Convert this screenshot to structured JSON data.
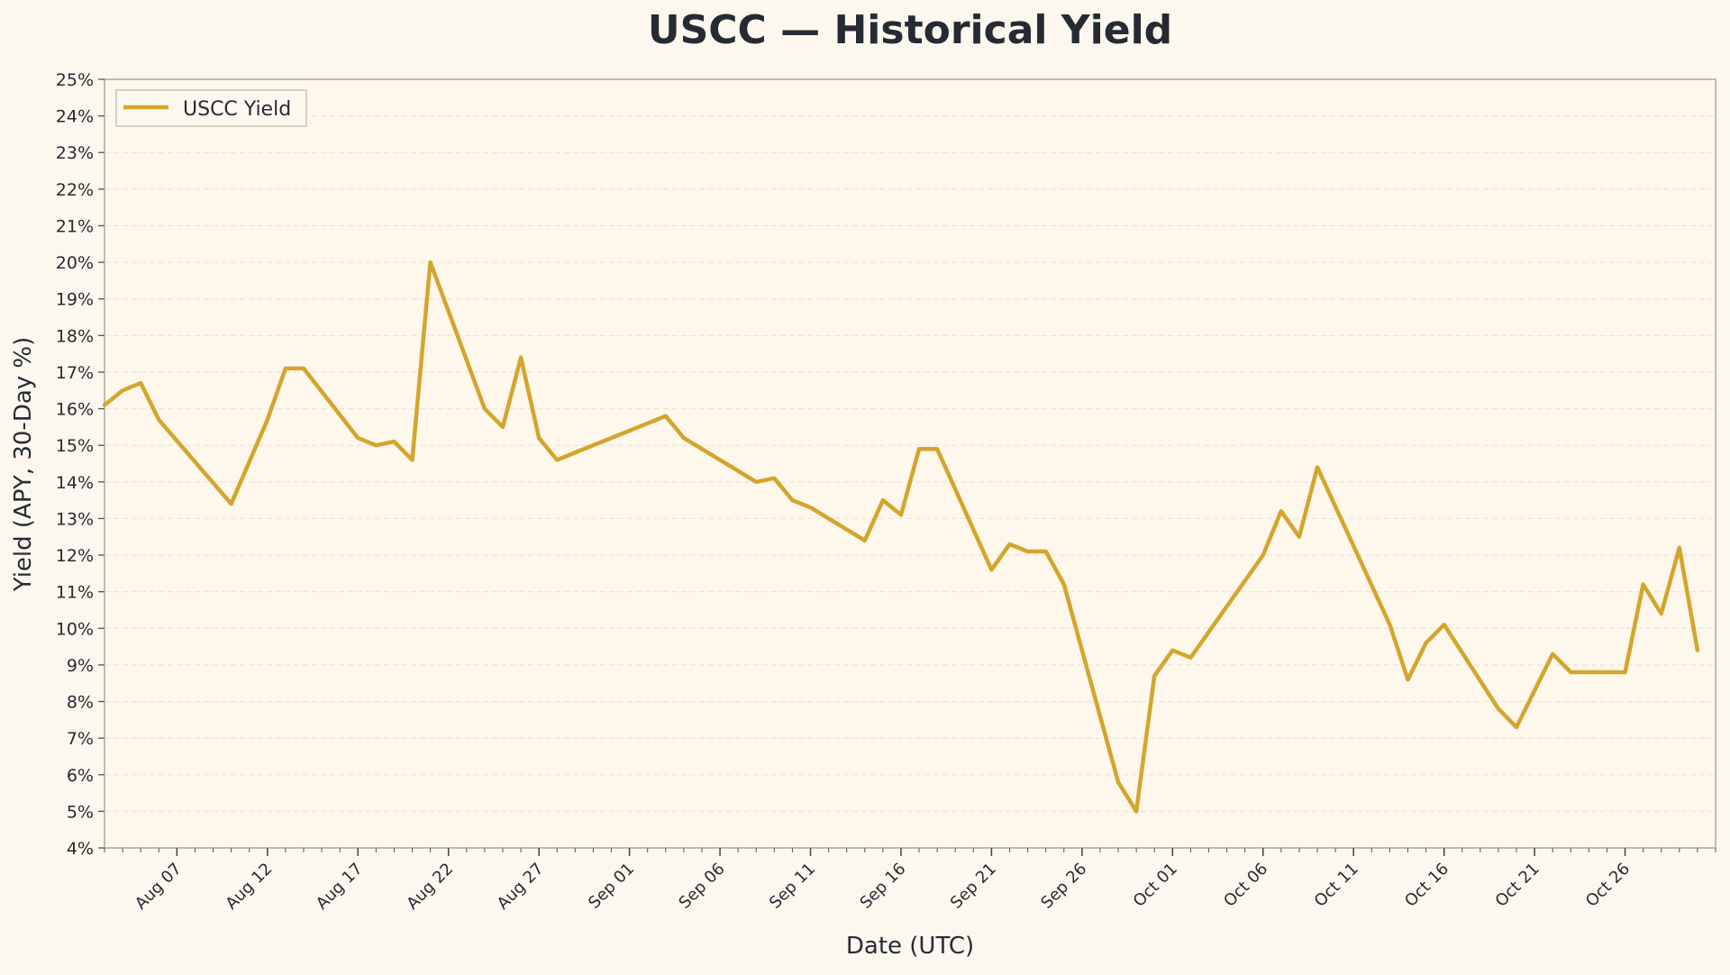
{
  "chart_data": {
    "type": "line",
    "title": "USCC — Historical Yield",
    "xlabel": "Date (UTC)",
    "ylabel": "Yield (APY, 30-Day %)",
    "ylim": [
      4,
      25
    ],
    "xlim": [
      "2025-08-03",
      "2025-10-31"
    ],
    "grid": true,
    "legend_position": "top-left",
    "y_ticks": [
      "4%",
      "5%",
      "6%",
      "7%",
      "8%",
      "9%",
      "10%",
      "11%",
      "12%",
      "13%",
      "14%",
      "15%",
      "16%",
      "17%",
      "18%",
      "19%",
      "20%",
      "21%",
      "22%",
      "23%",
      "24%",
      "25%"
    ],
    "x_ticks": [
      {
        "date": "2025-08-07",
        "label": "Aug 07"
      },
      {
        "date": "2025-08-12",
        "label": "Aug 12"
      },
      {
        "date": "2025-08-17",
        "label": "Aug 17"
      },
      {
        "date": "2025-08-22",
        "label": "Aug 22"
      },
      {
        "date": "2025-08-27",
        "label": "Aug 27"
      },
      {
        "date": "2025-09-01",
        "label": "Sep 01"
      },
      {
        "date": "2025-09-06",
        "label": "Sep 06"
      },
      {
        "date": "2025-09-11",
        "label": "Sep 11"
      },
      {
        "date": "2025-09-16",
        "label": "Sep 16"
      },
      {
        "date": "2025-09-21",
        "label": "Sep 21"
      },
      {
        "date": "2025-09-26",
        "label": "Sep 26"
      },
      {
        "date": "2025-10-01",
        "label": "Oct 01"
      },
      {
        "date": "2025-10-06",
        "label": "Oct 06"
      },
      {
        "date": "2025-10-11",
        "label": "Oct 11"
      },
      {
        "date": "2025-10-16",
        "label": "Oct 16"
      },
      {
        "date": "2025-10-21",
        "label": "Oct 21"
      },
      {
        "date": "2025-10-26",
        "label": "Oct 26"
      }
    ],
    "series": [
      {
        "name": "USCC Yield",
        "color": "#d4a52c",
        "points": [
          [
            "2025-08-03",
            16.1
          ],
          [
            "2025-08-04",
            16.5
          ],
          [
            "2025-08-05",
            16.7
          ],
          [
            "2025-08-06",
            15.7
          ],
          [
            "2025-08-10",
            13.4
          ],
          [
            "2025-08-12",
            15.7
          ],
          [
            "2025-08-13",
            17.1
          ],
          [
            "2025-08-14",
            17.1
          ],
          [
            "2025-08-17",
            15.2
          ],
          [
            "2025-08-18",
            15.0
          ],
          [
            "2025-08-19",
            15.1
          ],
          [
            "2025-08-20",
            14.6
          ],
          [
            "2025-08-21",
            20.0
          ],
          [
            "2025-08-24",
            16.0
          ],
          [
            "2025-08-25",
            15.5
          ],
          [
            "2025-08-26",
            17.4
          ],
          [
            "2025-08-27",
            15.2
          ],
          [
            "2025-08-28",
            14.6
          ],
          [
            "2025-09-01",
            15.4
          ],
          [
            "2025-09-02",
            15.6
          ],
          [
            "2025-09-03",
            15.8
          ],
          [
            "2025-09-04",
            15.2
          ],
          [
            "2025-09-07",
            14.3
          ],
          [
            "2025-09-08",
            14.0
          ],
          [
            "2025-09-09",
            14.1
          ],
          [
            "2025-09-10",
            13.5
          ],
          [
            "2025-09-11",
            13.3
          ],
          [
            "2025-09-14",
            12.4
          ],
          [
            "2025-09-15",
            13.5
          ],
          [
            "2025-09-16",
            13.1
          ],
          [
            "2025-09-17",
            14.9
          ],
          [
            "2025-09-18",
            14.9
          ],
          [
            "2025-09-21",
            11.6
          ],
          [
            "2025-09-22",
            12.3
          ],
          [
            "2025-09-23",
            12.1
          ],
          [
            "2025-09-24",
            12.1
          ],
          [
            "2025-09-25",
            11.2
          ],
          [
            "2025-09-28",
            5.8
          ],
          [
            "2025-09-29",
            5.0
          ],
          [
            "2025-09-30",
            8.7
          ],
          [
            "2025-10-01",
            9.4
          ],
          [
            "2025-10-02",
            9.2
          ],
          [
            "2025-10-05",
            11.3
          ],
          [
            "2025-10-06",
            12.0
          ],
          [
            "2025-10-07",
            13.2
          ],
          [
            "2025-10-08",
            12.5
          ],
          [
            "2025-10-09",
            14.4
          ],
          [
            "2025-10-13",
            10.1
          ],
          [
            "2025-10-14",
            8.6
          ],
          [
            "2025-10-15",
            9.6
          ],
          [
            "2025-10-16",
            10.1
          ],
          [
            "2025-10-19",
            7.8
          ],
          [
            "2025-10-20",
            7.3
          ],
          [
            "2025-10-22",
            9.3
          ],
          [
            "2025-10-23",
            8.8
          ],
          [
            "2025-10-26",
            8.8
          ],
          [
            "2025-10-27",
            11.2
          ],
          [
            "2025-10-28",
            10.4
          ],
          [
            "2025-10-29",
            12.2
          ],
          [
            "2025-10-30",
            9.4
          ]
        ]
      }
    ]
  }
}
